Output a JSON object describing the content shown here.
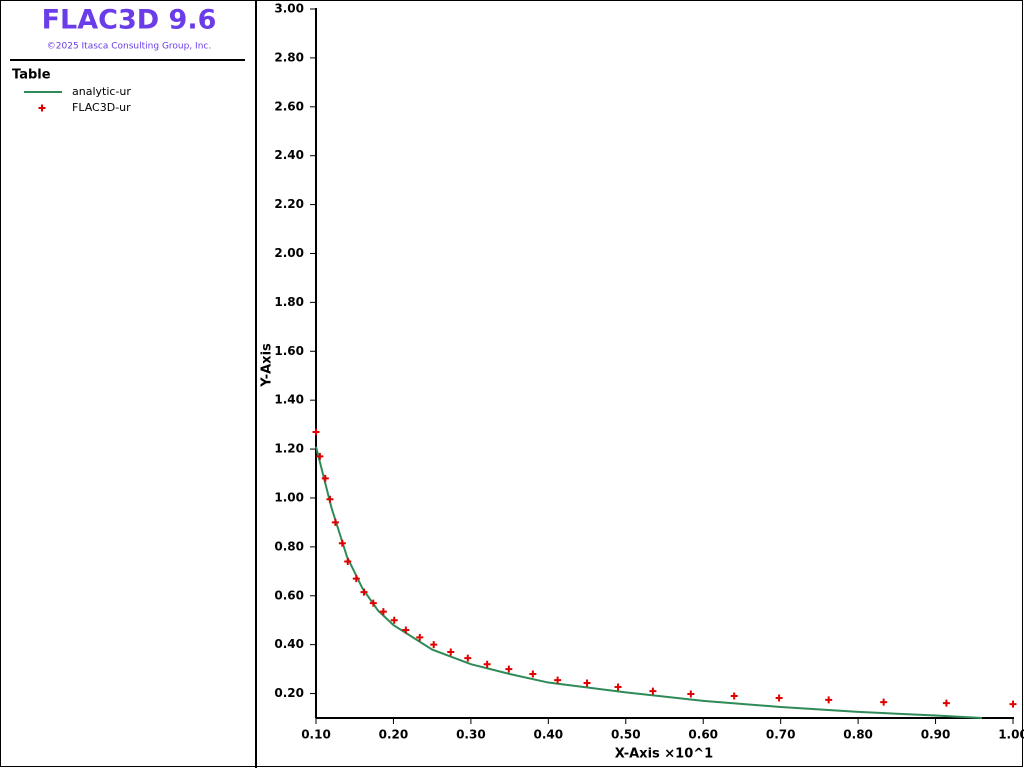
{
  "header": {
    "title": "FLAC3D 9.6",
    "copyright": "©2025 Itasca Consulting Group, Inc."
  },
  "chart_data": {
    "type": "line",
    "legend_title": "Table",
    "x_label": "X-Axis ×10^1",
    "y_label": "Y-Axis",
    "xlim": [
      0.1,
      1.0
    ],
    "ylim": [
      0.1,
      3.0
    ],
    "xticks": [
      {
        "value": 0.1,
        "label": "0.10"
      },
      {
        "value": 0.2,
        "label": "0.20"
      },
      {
        "value": 0.3,
        "label": "0.30"
      },
      {
        "value": 0.4,
        "label": "0.40"
      },
      {
        "value": 0.5,
        "label": "0.50"
      },
      {
        "value": 0.6,
        "label": "0.60"
      },
      {
        "value": 0.7,
        "label": "0.70"
      },
      {
        "value": 0.8,
        "label": "0.80"
      },
      {
        "value": 0.9,
        "label": "0.90"
      },
      {
        "value": 1.0,
        "label": "1.00"
      }
    ],
    "yticks": [
      {
        "value": 0.2,
        "label": "0.20"
      },
      {
        "value": 0.4,
        "label": "0.40"
      },
      {
        "value": 0.6,
        "label": "0.60"
      },
      {
        "value": 0.8,
        "label": "0.80"
      },
      {
        "value": 1.0,
        "label": "1.00"
      },
      {
        "value": 1.2,
        "label": "1.20"
      },
      {
        "value": 1.4,
        "label": "1.40"
      },
      {
        "value": 1.6,
        "label": "1.60"
      },
      {
        "value": 1.8,
        "label": "1.80"
      },
      {
        "value": 2.0,
        "label": "2.00"
      },
      {
        "value": 2.2,
        "label": "2.20"
      },
      {
        "value": 2.4,
        "label": "2.40"
      },
      {
        "value": 2.6,
        "label": "2.60"
      },
      {
        "value": 2.8,
        "label": "2.80"
      },
      {
        "value": 3.0,
        "label": "3.00"
      }
    ],
    "series": [
      {
        "name": "analytic-ur",
        "type": "line",
        "color": "#2e8b57",
        "x": [
          0.1,
          0.12,
          0.14,
          0.16,
          0.18,
          0.2,
          0.25,
          0.3,
          0.35,
          0.4,
          0.5,
          0.6,
          0.7,
          0.8,
          0.9,
          0.96
        ],
        "values": [
          1.21,
          0.96,
          0.76,
          0.63,
          0.54,
          0.48,
          0.38,
          0.32,
          0.28,
          0.245,
          0.205,
          0.17,
          0.145,
          0.125,
          0.11,
          0.1
        ]
      },
      {
        "name": "FLAC3D-ur",
        "type": "scatter",
        "color": "#e00000",
        "x": [
          0.1,
          0.105,
          0.112,
          0.118,
          0.125,
          0.134,
          0.141,
          0.152,
          0.162,
          0.174,
          0.187,
          0.201,
          0.216,
          0.234,
          0.252,
          0.274,
          0.296,
          0.321,
          0.349,
          0.38,
          0.412,
          0.45,
          0.49,
          0.535,
          0.584,
          0.64,
          0.698,
          0.762,
          0.833,
          0.914,
          1.0
        ],
        "values": [
          1.27,
          1.17,
          1.08,
          0.995,
          0.9,
          0.815,
          0.74,
          0.67,
          0.615,
          0.57,
          0.535,
          0.5,
          0.46,
          0.43,
          0.4,
          0.37,
          0.345,
          0.32,
          0.3,
          0.28,
          0.255,
          0.243,
          0.227,
          0.21,
          0.198,
          0.19,
          0.182,
          0.174,
          0.165,
          0.161,
          0.157
        ]
      }
    ]
  }
}
